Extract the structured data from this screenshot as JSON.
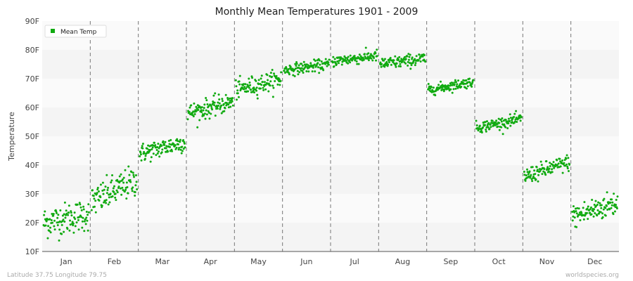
{
  "chart_data": {
    "type": "scatter",
    "title": "Monthly Mean Temperatures 1901 - 2009",
    "ylabel": "Temperature",
    "ylim": [
      10,
      90
    ],
    "y_ticks": [
      "10F",
      "20F",
      "30F",
      "40F",
      "50F",
      "60F",
      "70F",
      "80F",
      "90F"
    ],
    "categories": [
      "Jan",
      "Feb",
      "Mar",
      "Apr",
      "May",
      "Jun",
      "Jul",
      "Aug",
      "Sep",
      "Oct",
      "Nov",
      "Dec"
    ],
    "grid": "horizontal bands; dashed vertical month separators",
    "legend_position": "top-left",
    "series": [
      {
        "name": "Mean Temp",
        "color": "#11aa11",
        "points_per_month": 109,
        "month_summary": [
          {
            "month": "Jan",
            "start": 20,
            "end": 23,
            "spread": 5
          },
          {
            "month": "Feb",
            "start": 27,
            "end": 35,
            "spread": 5
          },
          {
            "month": "Mar",
            "start": 44,
            "end": 48,
            "spread": 3
          },
          {
            "month": "Apr",
            "start": 58,
            "end": 62,
            "spread": 3
          },
          {
            "month": "May",
            "start": 66,
            "end": 70,
            "spread": 3
          },
          {
            "month": "Jun",
            "start": 73,
            "end": 75,
            "spread": 1.8
          },
          {
            "month": "Jul",
            "start": 76,
            "end": 78,
            "spread": 1.8
          },
          {
            "month": "Aug",
            "start": 75,
            "end": 77,
            "spread": 2
          },
          {
            "month": "Sep",
            "start": 66,
            "end": 69,
            "spread": 1.6
          },
          {
            "month": "Oct",
            "start": 53,
            "end": 56,
            "spread": 1.8
          },
          {
            "month": "Nov",
            "start": 36,
            "end": 41,
            "spread": 2.6
          },
          {
            "month": "Dec",
            "start": 22,
            "end": 27,
            "spread": 4
          }
        ]
      }
    ]
  },
  "footer": {
    "left": "Latitude 37.75 Longitude 79.75",
    "right": "worldspecies.org"
  }
}
